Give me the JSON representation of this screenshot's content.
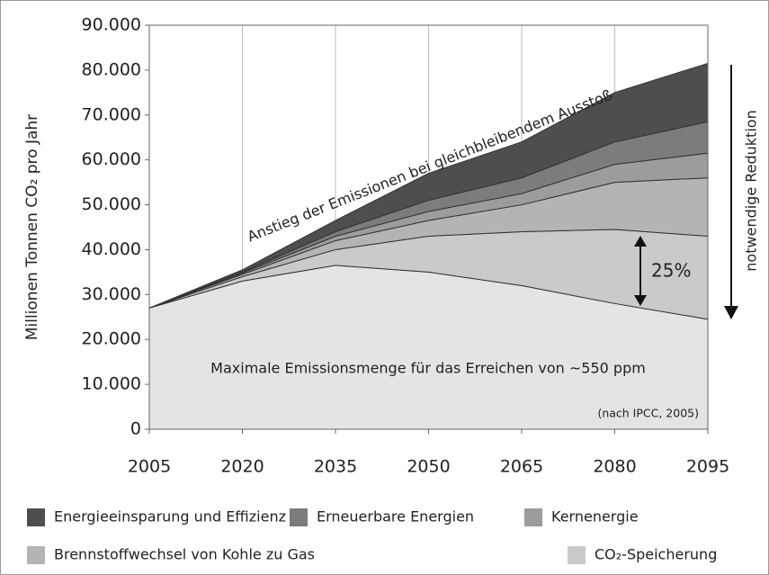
{
  "chart_data": {
    "type": "stacked-area",
    "ylabel": "Millionen Tonnen CO₂ pro Jahr",
    "x": [
      2005,
      2020,
      2035,
      2050,
      2065,
      2080,
      2095
    ],
    "xlim": [
      2005,
      2095
    ],
    "xticks": [
      2005,
      2020,
      2035,
      2050,
      2065,
      2080,
      2095
    ],
    "ylim": [
      0,
      90000
    ],
    "yticks": [
      0,
      {
        "value": 10000,
        "label": "10.000"
      },
      {
        "value": 20000,
        "label": "20.000"
      },
      {
        "value": 30000,
        "label": "30.000"
      },
      {
        "value": 40000,
        "label": "40.000"
      },
      {
        "value": 50000,
        "label": "50.000"
      },
      {
        "value": 60000,
        "label": "60.000"
      },
      {
        "value": 70000,
        "label": "70.000"
      },
      {
        "value": 80000,
        "label": "80.000"
      },
      {
        "value": 90000,
        "label": "90.000"
      }
    ],
    "grid": true,
    "series": [
      {
        "color": "#e4e4e4",
        "values": [
          27000,
          33000,
          36500,
          35000,
          32000,
          28000,
          24500
        ]
      },
      {
        "name": "CO₂-Speicherung",
        "color": "#cacaca",
        "values": [
          0,
          1000,
          3500,
          8000,
          12000,
          16500,
          18500
        ]
      },
      {
        "name": "Brennstoffwechsel von Kohle zu Gas",
        "color": "#b4b4b4",
        "values": [
          0,
          500,
          2000,
          3500,
          6000,
          10500,
          13000
        ]
      },
      {
        "name": "Kernenergie",
        "color": "#9c9c9c",
        "values": [
          0,
          300,
          1000,
          2000,
          2500,
          4000,
          5500
        ]
      },
      {
        "name": "Erneuerbare Energien",
        "color": "#7c7c7c",
        "values": [
          0,
          200,
          1000,
          2500,
          3500,
          5000,
          7000
        ]
      },
      {
        "name": "Energieeinsparung und Effizienz",
        "color": "#4e4e4e",
        "values": [
          0,
          500,
          2500,
          6000,
          8000,
          11000,
          13000
        ]
      }
    ],
    "annotations": [
      "Anstieg der Emissionen bei gleichbleibendem Ausstoß",
      "25%",
      "notwendige Reduktion",
      "Maximale Emissionsmenge für das Erreichen von ~550 ppm",
      "(nach IPCC, 2005)"
    ]
  }
}
